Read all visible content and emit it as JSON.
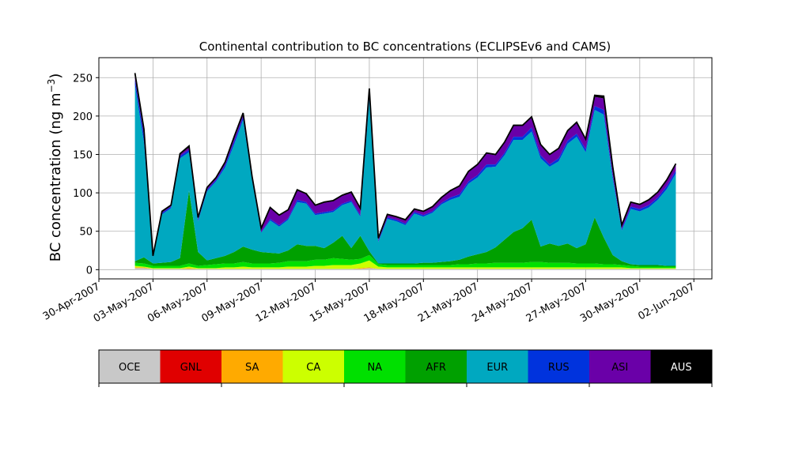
{
  "chart_data": {
    "type": "area",
    "stacked": true,
    "title": "Continental contribution to BC concentrations (ECLIPSEv6 and CAMS)",
    "ylabel": "BC concentration (ng m",
    "ylabel_sup": "−3",
    "ylabel_close": ")",
    "xlabel": "",
    "xlim": [
      "2007-04-30",
      "2007-06-03"
    ],
    "ylim": [
      -12,
      276
    ],
    "grid": true,
    "x_ticks": [
      "2007-04-30",
      "2007-05-03",
      "2007-05-06",
      "2007-05-09",
      "2007-05-12",
      "2007-05-15",
      "2007-05-18",
      "2007-05-21",
      "2007-05-24",
      "2007-05-27",
      "2007-05-30",
      "2007-06-02"
    ],
    "x_tick_labels": [
      "30-Apr-2007",
      "03-May-2007",
      "06-May-2007",
      "09-May-2007",
      "12-May-2007",
      "15-May-2007",
      "18-May-2007",
      "21-May-2007",
      "24-May-2007",
      "27-May-2007",
      "30-May-2007",
      "02-Jun-2007"
    ],
    "y_ticks": [
      0,
      50,
      100,
      150,
      200,
      250
    ],
    "y_tick_labels": [
      "0",
      "50",
      "100",
      "150",
      "200",
      "250"
    ],
    "x": [
      "2007-05-02",
      "2007-05-02T12",
      "2007-05-03",
      "2007-05-03T12",
      "2007-05-04",
      "2007-05-04T12",
      "2007-05-05",
      "2007-05-05T12",
      "2007-05-06",
      "2007-05-06T12",
      "2007-05-07",
      "2007-05-07T12",
      "2007-05-08",
      "2007-05-08T12",
      "2007-05-09",
      "2007-05-09T12",
      "2007-05-10",
      "2007-05-10T12",
      "2007-05-11",
      "2007-05-11T12",
      "2007-05-12",
      "2007-05-12T12",
      "2007-05-13",
      "2007-05-13T12",
      "2007-05-14",
      "2007-05-14T12",
      "2007-05-15",
      "2007-05-15T12",
      "2007-05-16",
      "2007-05-16T12",
      "2007-05-17",
      "2007-05-17T12",
      "2007-05-18",
      "2007-05-18T12",
      "2007-05-19",
      "2007-05-19T12",
      "2007-05-20",
      "2007-05-20T12",
      "2007-05-21",
      "2007-05-21T12",
      "2007-05-22",
      "2007-05-22T12",
      "2007-05-23",
      "2007-05-23T12",
      "2007-05-24",
      "2007-05-24T12",
      "2007-05-25",
      "2007-05-25T12",
      "2007-05-26",
      "2007-05-26T12",
      "2007-05-27",
      "2007-05-27T12",
      "2007-05-28",
      "2007-05-28T12",
      "2007-05-29",
      "2007-05-29T12",
      "2007-05-30",
      "2007-05-30T12",
      "2007-05-31",
      "2007-05-31T12",
      "2007-06-01"
    ],
    "series": [
      {
        "name": "OCE",
        "color": "#c8c8c8",
        "values": [
          2,
          2,
          1,
          1,
          1,
          1,
          1,
          1,
          1,
          1,
          1,
          1,
          1,
          1,
          1,
          1,
          1,
          1,
          1,
          1,
          1,
          1,
          1,
          1,
          1,
          1,
          2,
          1,
          1,
          1,
          1,
          1,
          1,
          1,
          1,
          1,
          1,
          1,
          1,
          1,
          1,
          1,
          1,
          1,
          1,
          1,
          1,
          1,
          1,
          1,
          1,
          1,
          1,
          1,
          1,
          1,
          1,
          1,
          1,
          1,
          1
        ]
      },
      {
        "name": "GNL",
        "color": "#e00000",
        "values": [
          0,
          0,
          0,
          0,
          0,
          0,
          0,
          0,
          0,
          0,
          0,
          0,
          0,
          0,
          0,
          0,
          0,
          0,
          0,
          0,
          0,
          0,
          0,
          0,
          0,
          0,
          0,
          0,
          0,
          0,
          0,
          0,
          0,
          0,
          0,
          0,
          0,
          0,
          0,
          0,
          0,
          0,
          0,
          0,
          0,
          0,
          0,
          0,
          0,
          0,
          0,
          0,
          0,
          0,
          0,
          0,
          0,
          0,
          0,
          0,
          0
        ]
      },
      {
        "name": "SA",
        "color": "#ffaa00",
        "values": [
          1,
          1,
          0,
          0,
          0,
          0,
          1,
          0,
          0,
          0,
          0,
          0,
          0,
          0,
          0,
          0,
          0,
          0,
          0,
          0,
          0,
          0,
          0,
          0,
          0,
          1,
          1,
          0,
          0,
          0,
          0,
          0,
          0,
          0,
          0,
          0,
          0,
          0,
          0,
          0,
          0,
          0,
          0,
          0,
          0,
          0,
          0,
          0,
          0,
          0,
          0,
          0,
          0,
          0,
          0,
          0,
          0,
          0,
          0,
          0,
          0
        ]
      },
      {
        "name": "CA",
        "color": "#ccff00",
        "values": [
          2,
          1,
          1,
          1,
          1,
          1,
          2,
          1,
          1,
          1,
          2,
          2,
          3,
          2,
          2,
          2,
          2,
          3,
          3,
          3,
          4,
          4,
          5,
          5,
          5,
          6,
          9,
          3,
          2,
          2,
          2,
          2,
          2,
          2,
          2,
          2,
          2,
          2,
          2,
          2,
          2,
          2,
          2,
          2,
          2,
          2,
          2,
          2,
          2,
          2,
          2,
          2,
          2,
          2,
          2,
          1,
          1,
          1,
          1,
          1,
          1
        ]
      },
      {
        "name": "NA",
        "color": "#00e000",
        "values": [
          4,
          4,
          3,
          3,
          3,
          3,
          4,
          3,
          4,
          5,
          5,
          5,
          6,
          5,
          5,
          5,
          6,
          7,
          7,
          7,
          8,
          8,
          9,
          8,
          7,
          6,
          7,
          3,
          3,
          3,
          3,
          3,
          3,
          3,
          3,
          3,
          4,
          4,
          5,
          5,
          6,
          6,
          6,
          6,
          7,
          7,
          6,
          6,
          6,
          5,
          5,
          5,
          4,
          4,
          3,
          3,
          2,
          2,
          2,
          2,
          2
        ]
      },
      {
        "name": "AFR",
        "color": "#00a000",
        "values": [
          2,
          8,
          3,
          4,
          5,
          10,
          95,
          18,
          6,
          8,
          10,
          15,
          20,
          18,
          15,
          14,
          12,
          14,
          22,
          20,
          18,
          15,
          20,
          30,
          15,
          30,
          5,
          1,
          2,
          2,
          2,
          2,
          3,
          3,
          4,
          5,
          6,
          10,
          12,
          15,
          20,
          30,
          40,
          45,
          55,
          20,
          25,
          22,
          25,
          20,
          25,
          60,
          35,
          12,
          5,
          2,
          2,
          2,
          2,
          1,
          1
        ]
      },
      {
        "name": "EUR",
        "color": "#00a8c0",
        "values": [
          229,
          150,
          8,
          63,
          70,
          130,
          50,
          40,
          90,
          100,
          115,
          140,
          165,
          90,
          25,
          42,
          35,
          40,
          55,
          55,
          40,
          45,
          40,
          40,
          60,
          25,
          198,
          28,
          58,
          55,
          50,
          65,
          60,
          65,
          75,
          80,
          82,
          95,
          100,
          110,
          105,
          110,
          120,
          115,
          115,
          115,
          100,
          110,
          130,
          145,
          120,
          140,
          160,
          100,
          40,
          72,
          70,
          75,
          85,
          100,
          120
        ]
      },
      {
        "name": "RUS",
        "color": "#0033dd",
        "values": [
          8,
          8,
          1,
          2,
          2,
          3,
          3,
          2,
          2,
          2,
          3,
          4,
          4,
          2,
          1,
          2,
          2,
          2,
          3,
          2,
          2,
          2,
          2,
          2,
          2,
          2,
          4,
          2,
          2,
          2,
          2,
          2,
          2,
          2,
          2,
          3,
          3,
          3,
          3,
          4,
          3,
          3,
          4,
          4,
          5,
          4,
          3,
          4,
          4,
          4,
          4,
          5,
          6,
          4,
          2,
          3,
          3,
          3,
          3,
          4,
          4
        ]
      },
      {
        "name": "ASI",
        "color": "#6a00a8",
        "values": [
          5,
          6,
          0,
          1,
          1,
          2,
          3,
          2,
          2,
          2,
          3,
          4,
          3,
          2,
          4,
          14,
          12,
          10,
          12,
          10,
          10,
          12,
          12,
          10,
          10,
          8,
          4,
          2,
          3,
          3,
          4,
          3,
          4,
          5,
          6,
          8,
          10,
          12,
          13,
          14,
          12,
          13,
          14,
          14,
          13,
          13,
          12,
          12,
          12,
          14,
          12,
          12,
          15,
          10,
          4,
          5,
          5,
          6,
          6,
          7,
          8
        ]
      },
      {
        "name": "AUS",
        "color": "#000000",
        "values": [
          3,
          3,
          1,
          1,
          1,
          1,
          2,
          1,
          1,
          1,
          1,
          2,
          2,
          1,
          1,
          1,
          1,
          1,
          1,
          1,
          1,
          1,
          1,
          1,
          1,
          1,
          6,
          1,
          1,
          1,
          1,
          1,
          1,
          1,
          1,
          1,
          1,
          1,
          1,
          1,
          1,
          1,
          1,
          1,
          1,
          1,
          1,
          1,
          1,
          1,
          1,
          2,
          3,
          1,
          1,
          1,
          1,
          1,
          1,
          1,
          1
        ]
      }
    ],
    "legend": {
      "placement": "bottom colorbar",
      "entries": [
        {
          "label": "OCE",
          "color": "#c8c8c8",
          "text_color": "#000000"
        },
        {
          "label": "GNL",
          "color": "#e00000",
          "text_color": "#000000"
        },
        {
          "label": "SA",
          "color": "#ffaa00",
          "text_color": "#000000"
        },
        {
          "label": "CA",
          "color": "#ccff00",
          "text_color": "#000000"
        },
        {
          "label": "NA",
          "color": "#00e000",
          "text_color": "#000000"
        },
        {
          "label": "AFR",
          "color": "#00a000",
          "text_color": "#000000"
        },
        {
          "label": "EUR",
          "color": "#00a8c0",
          "text_color": "#000000"
        },
        {
          "label": "RUS",
          "color": "#0033dd",
          "text_color": "#000000"
        },
        {
          "label": "ASI",
          "color": "#6a00a8",
          "text_color": "#000000"
        },
        {
          "label": "AUS",
          "color": "#000000",
          "text_color": "#ffffff"
        }
      ]
    }
  }
}
